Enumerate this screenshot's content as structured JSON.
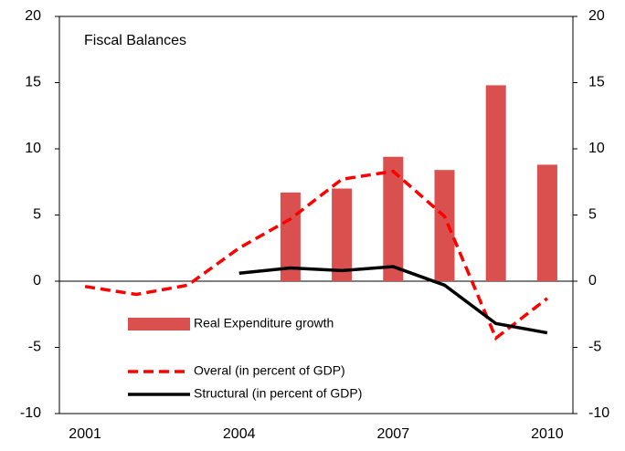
{
  "chart_data": {
    "type": "bar-line",
    "title": "Fiscal Balances",
    "categories": [
      "2001",
      null,
      null,
      "2004",
      null,
      null,
      "2007",
      null,
      null,
      "2010"
    ],
    "series": [
      {
        "name": "Real Expenditure growth",
        "type": "bar",
        "color": "#d9504f",
        "values": [
          null,
          null,
          null,
          null,
          6.7,
          7.0,
          9.4,
          8.4,
          14.8,
          8.8
        ]
      },
      {
        "name": "Overal (in percent of GDP)",
        "type": "line",
        "dashed": true,
        "color": "#ff0000",
        "values": [
          -0.4,
          -1.0,
          -0.3,
          2.5,
          4.7,
          7.7,
          8.3,
          4.9,
          -4.3,
          -1.3
        ]
      },
      {
        "name": "Structural (in percent of GDP)",
        "type": "line",
        "dashed": false,
        "color": "#000000",
        "values": [
          null,
          null,
          null,
          0.6,
          1.0,
          0.8,
          1.1,
          -0.3,
          -3.2,
          -3.9
        ]
      }
    ],
    "ylim": [
      -10,
      20
    ],
    "yticks": [
      -10,
      -5,
      0,
      5,
      10,
      15,
      20
    ],
    "y2lim": [
      -10,
      20
    ],
    "y2ticks": [
      -10,
      -5,
      0,
      5,
      10,
      15,
      20
    ],
    "grid": false
  }
}
